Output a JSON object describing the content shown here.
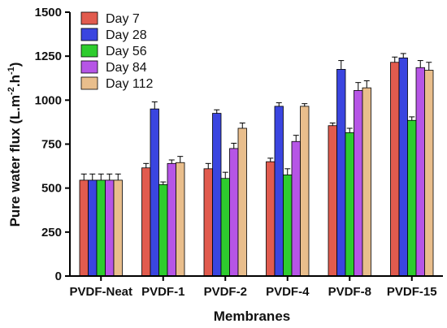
{
  "chart_data": {
    "type": "bar",
    "xlabel": "Membranes",
    "ylabel_parts": [
      "Pure water flux (L.m",
      "-2",
      ".h",
      "-1",
      ")"
    ],
    "ylim": [
      0,
      1500
    ],
    "yticks": [
      0,
      250,
      500,
      750,
      1000,
      1250,
      1500
    ],
    "categories": [
      "PVDF-Neat",
      "PVDF-1",
      "PVDF-2",
      "PVDF-4",
      "PVDF-8",
      "PVDF-15"
    ],
    "legend_position": "top-left",
    "series": [
      {
        "name": "Day 7",
        "color": "#e15b4e",
        "values": [
          545,
          615,
          610,
          650,
          855,
          1215
        ],
        "errors": [
          35,
          25,
          30,
          20,
          15,
          30
        ]
      },
      {
        "name": "Day 28",
        "color": "#3a45e0",
        "values": [
          545,
          950,
          925,
          965,
          1175,
          1240
        ],
        "errors": [
          35,
          40,
          20,
          20,
          50,
          25
        ]
      },
      {
        "name": "Day 56",
        "color": "#2ecc2e",
        "values": [
          545,
          520,
          555,
          575,
          815,
          885
        ],
        "errors": [
          35,
          15,
          35,
          35,
          25,
          20
        ]
      },
      {
        "name": "Day 84",
        "color": "#b655e6",
        "values": [
          545,
          640,
          725,
          765,
          1055,
          1185
        ],
        "errors": [
          35,
          20,
          30,
          35,
          45,
          40
        ]
      },
      {
        "name": "Day 112",
        "color": "#e9be8c",
        "values": [
          545,
          645,
          840,
          965,
          1070,
          1170
        ],
        "errors": [
          35,
          35,
          30,
          15,
          40,
          45
        ]
      }
    ]
  }
}
